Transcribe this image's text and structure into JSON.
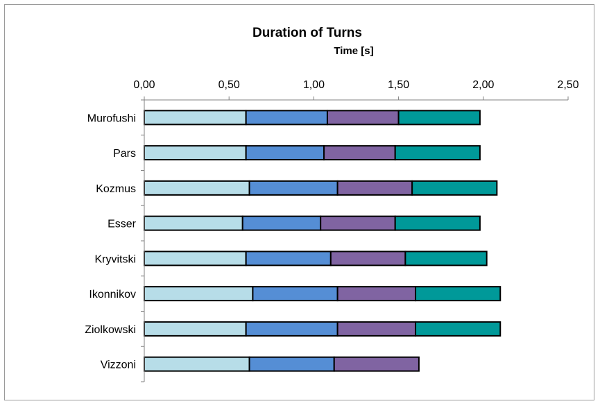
{
  "chart_data": {
    "type": "bar",
    "orientation": "horizontal",
    "stacked": true,
    "title": "Duration of Turns",
    "xlabel": "Time [s]",
    "ylabel": "",
    "xlim": [
      0,
      2.5
    ],
    "x_ticks": [
      "0,00",
      "0,50",
      "1,00",
      "1,50",
      "2,00",
      "2,50"
    ],
    "x_tick_values": [
      0,
      0.5,
      1.0,
      1.5,
      2.0,
      2.5
    ],
    "grid": false,
    "legend": "none",
    "categories": [
      "Murofushi",
      "Pars",
      "Kozmus",
      "Esser",
      "Kryvitski",
      "Ikonnikov",
      "Ziolkowski",
      "Vizzoni"
    ],
    "series": [
      {
        "color": "#b7dde8",
        "values": [
          0.6,
          0.6,
          0.62,
          0.58,
          0.6,
          0.64,
          0.6,
          0.62
        ]
      },
      {
        "color": "#558ed5",
        "values": [
          0.48,
          0.46,
          0.52,
          0.46,
          0.5,
          0.5,
          0.54,
          0.5
        ]
      },
      {
        "color": "#8064a2",
        "values": [
          0.42,
          0.42,
          0.44,
          0.44,
          0.44,
          0.46,
          0.46,
          0.5
        ]
      },
      {
        "color": "#009999",
        "values": [
          0.48,
          0.5,
          0.5,
          0.5,
          0.48,
          0.5,
          0.5,
          null
        ]
      }
    ]
  }
}
